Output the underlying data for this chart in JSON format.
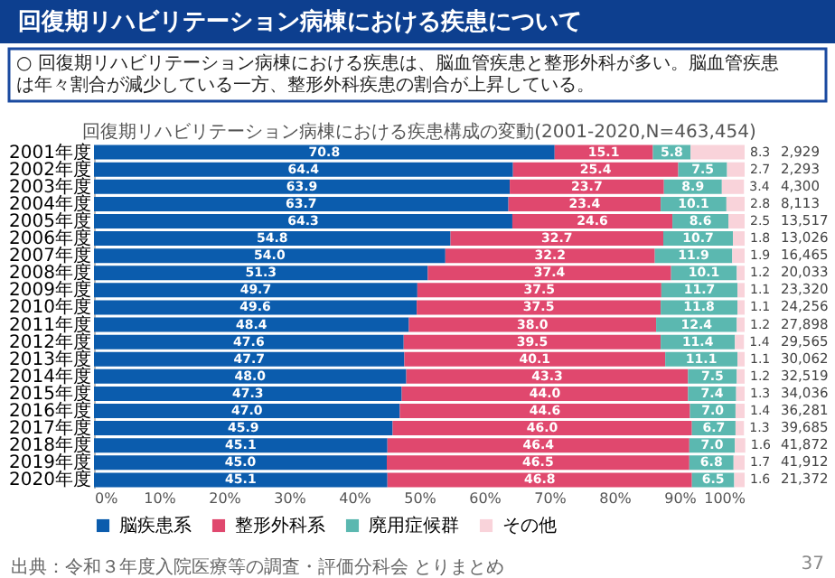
{
  "chart_data": {
    "type": "bar",
    "orientation": "horizontal",
    "stacked": true,
    "title": "回復期リハビリテーション病棟における疾患について",
    "subtitle": "○ 回復期リハビリテーション病棟における疾患は、脳血管疾患と整形外科が多い。脳血管疾患は年々割合が減少している一方、整形外科疾患の割合が上昇している。",
    "categories": [
      "2001年度",
      "2002年度",
      "2003年度",
      "2004年度",
      "2005年度",
      "2006年度",
      "2007年度",
      "2008年度",
      "2009年度",
      "2010年度",
      "2011年度",
      "2012年度",
      "2013年度",
      "2014年度",
      "2015年度",
      "2016年度",
      "2017年度",
      "2018年度",
      "2019年度",
      "2020年度"
    ],
    "series": [
      {
        "name": "脳疾患系",
        "color": "#0b5cad",
        "values": [
          70.8,
          64.4,
          63.9,
          63.7,
          64.3,
          54.8,
          54.0,
          51.3,
          49.7,
          49.6,
          48.4,
          47.6,
          47.7,
          48.0,
          47.3,
          47.0,
          45.9,
          45.1,
          45.0,
          45.1
        ],
        "value_labels": [
          "70.8",
          "64.4",
          "63.9",
          "63.7",
          "64.3",
          "54.8",
          "54.0",
          "51.3",
          "49.7",
          "49.6",
          "48.4",
          "47.6",
          "47.7",
          "48.0",
          "47.3",
          "47.0",
          "45.9",
          "45.1",
          "45.0",
          "45.1"
        ]
      },
      {
        "name": "整形外科系",
        "color": "#e0486e",
        "values": [
          15.1,
          25.4,
          23.7,
          23.4,
          24.6,
          32.7,
          32.2,
          37.4,
          37.5,
          37.5,
          38.0,
          39.5,
          40.1,
          43.3,
          44.0,
          44.6,
          46.0,
          46.4,
          46.5,
          46.8
        ],
        "value_labels": [
          "15.1",
          "25.4",
          "23.7",
          "23.4",
          "24.6",
          "32.7",
          "32.2",
          "37.4",
          "37.5",
          "37.5",
          "38.0",
          "39.5",
          "40.1",
          "43.3",
          "44.0",
          "44.6",
          "46.0",
          "46.4",
          "46.5",
          "46.8"
        ]
      },
      {
        "name": "廃用症候群",
        "color": "#5bb8b0",
        "values": [
          5.8,
          7.5,
          8.9,
          10.1,
          8.6,
          10.7,
          11.9,
          10.1,
          11.7,
          11.8,
          12.4,
          11.4,
          11.1,
          7.5,
          7.4,
          7.0,
          6.7,
          7.0,
          6.8,
          6.5
        ],
        "value_labels": [
          "5.8",
          "7.5",
          "8.9",
          "10.1",
          "8.6",
          "10.7",
          "11.9",
          "10.1",
          "11.7",
          "11.8",
          "12.4",
          "11.4",
          "11.1",
          "7.5",
          "7.4",
          "7.0",
          "6.7",
          "7.0",
          "6.8",
          "6.5"
        ]
      },
      {
        "name": "その他",
        "color": "#f9d3da",
        "values": [
          8.3,
          2.7,
          3.4,
          2.8,
          2.5,
          1.8,
          1.9,
          1.2,
          1.1,
          1.1,
          1.2,
          1.4,
          1.1,
          1.2,
          1.3,
          1.4,
          1.3,
          1.6,
          1.7,
          1.6
        ],
        "value_labels": [
          "8.3",
          "2.7",
          "3.4",
          "2.8",
          "2.5",
          "1.8",
          "1.9",
          "1.2",
          "1.1",
          "1.1",
          "1.2",
          "1.4",
          "1.1",
          "1.2",
          "1.3",
          "1.4",
          "1.3",
          "1.6",
          "1.7",
          "1.6"
        ]
      }
    ],
    "xlim": [
      0,
      100
    ],
    "xticks": [
      {
        "value": 0,
        "label": "0%"
      },
      {
        "value": 10,
        "label": "10%"
      },
      {
        "value": 20,
        "label": "20%"
      },
      {
        "value": 30,
        "label": "30%"
      },
      {
        "value": 40,
        "label": "40%"
      },
      {
        "value": 50,
        "label": "50%"
      },
      {
        "value": 60,
        "label": "60%"
      },
      {
        "value": 70,
        "label": "70%"
      },
      {
        "value": 80,
        "label": "80%"
      },
      {
        "value": 90,
        "label": "90%"
      },
      {
        "value": 100,
        "label": "100%"
      }
    ],
    "grid": false,
    "legend": "bottom",
    "annotations": [
      "回復期リハビリテーション病棟における疾患構成の変動(2001-2020,N=463,454)",
      "出典：令和３年度入院医療等の調査・評価分科会 とりまとめ",
      "37",
      "2,929",
      "2,293",
      "4,300",
      "8,113",
      "13,517",
      "13,026",
      "16,465",
      "20,033",
      "23,320",
      "24,256",
      "27,898",
      "29,565",
      "30,062",
      "32,519",
      "34,036",
      "36,281",
      "39,685",
      "41,872",
      "41,912",
      "21,372"
    ]
  }
}
